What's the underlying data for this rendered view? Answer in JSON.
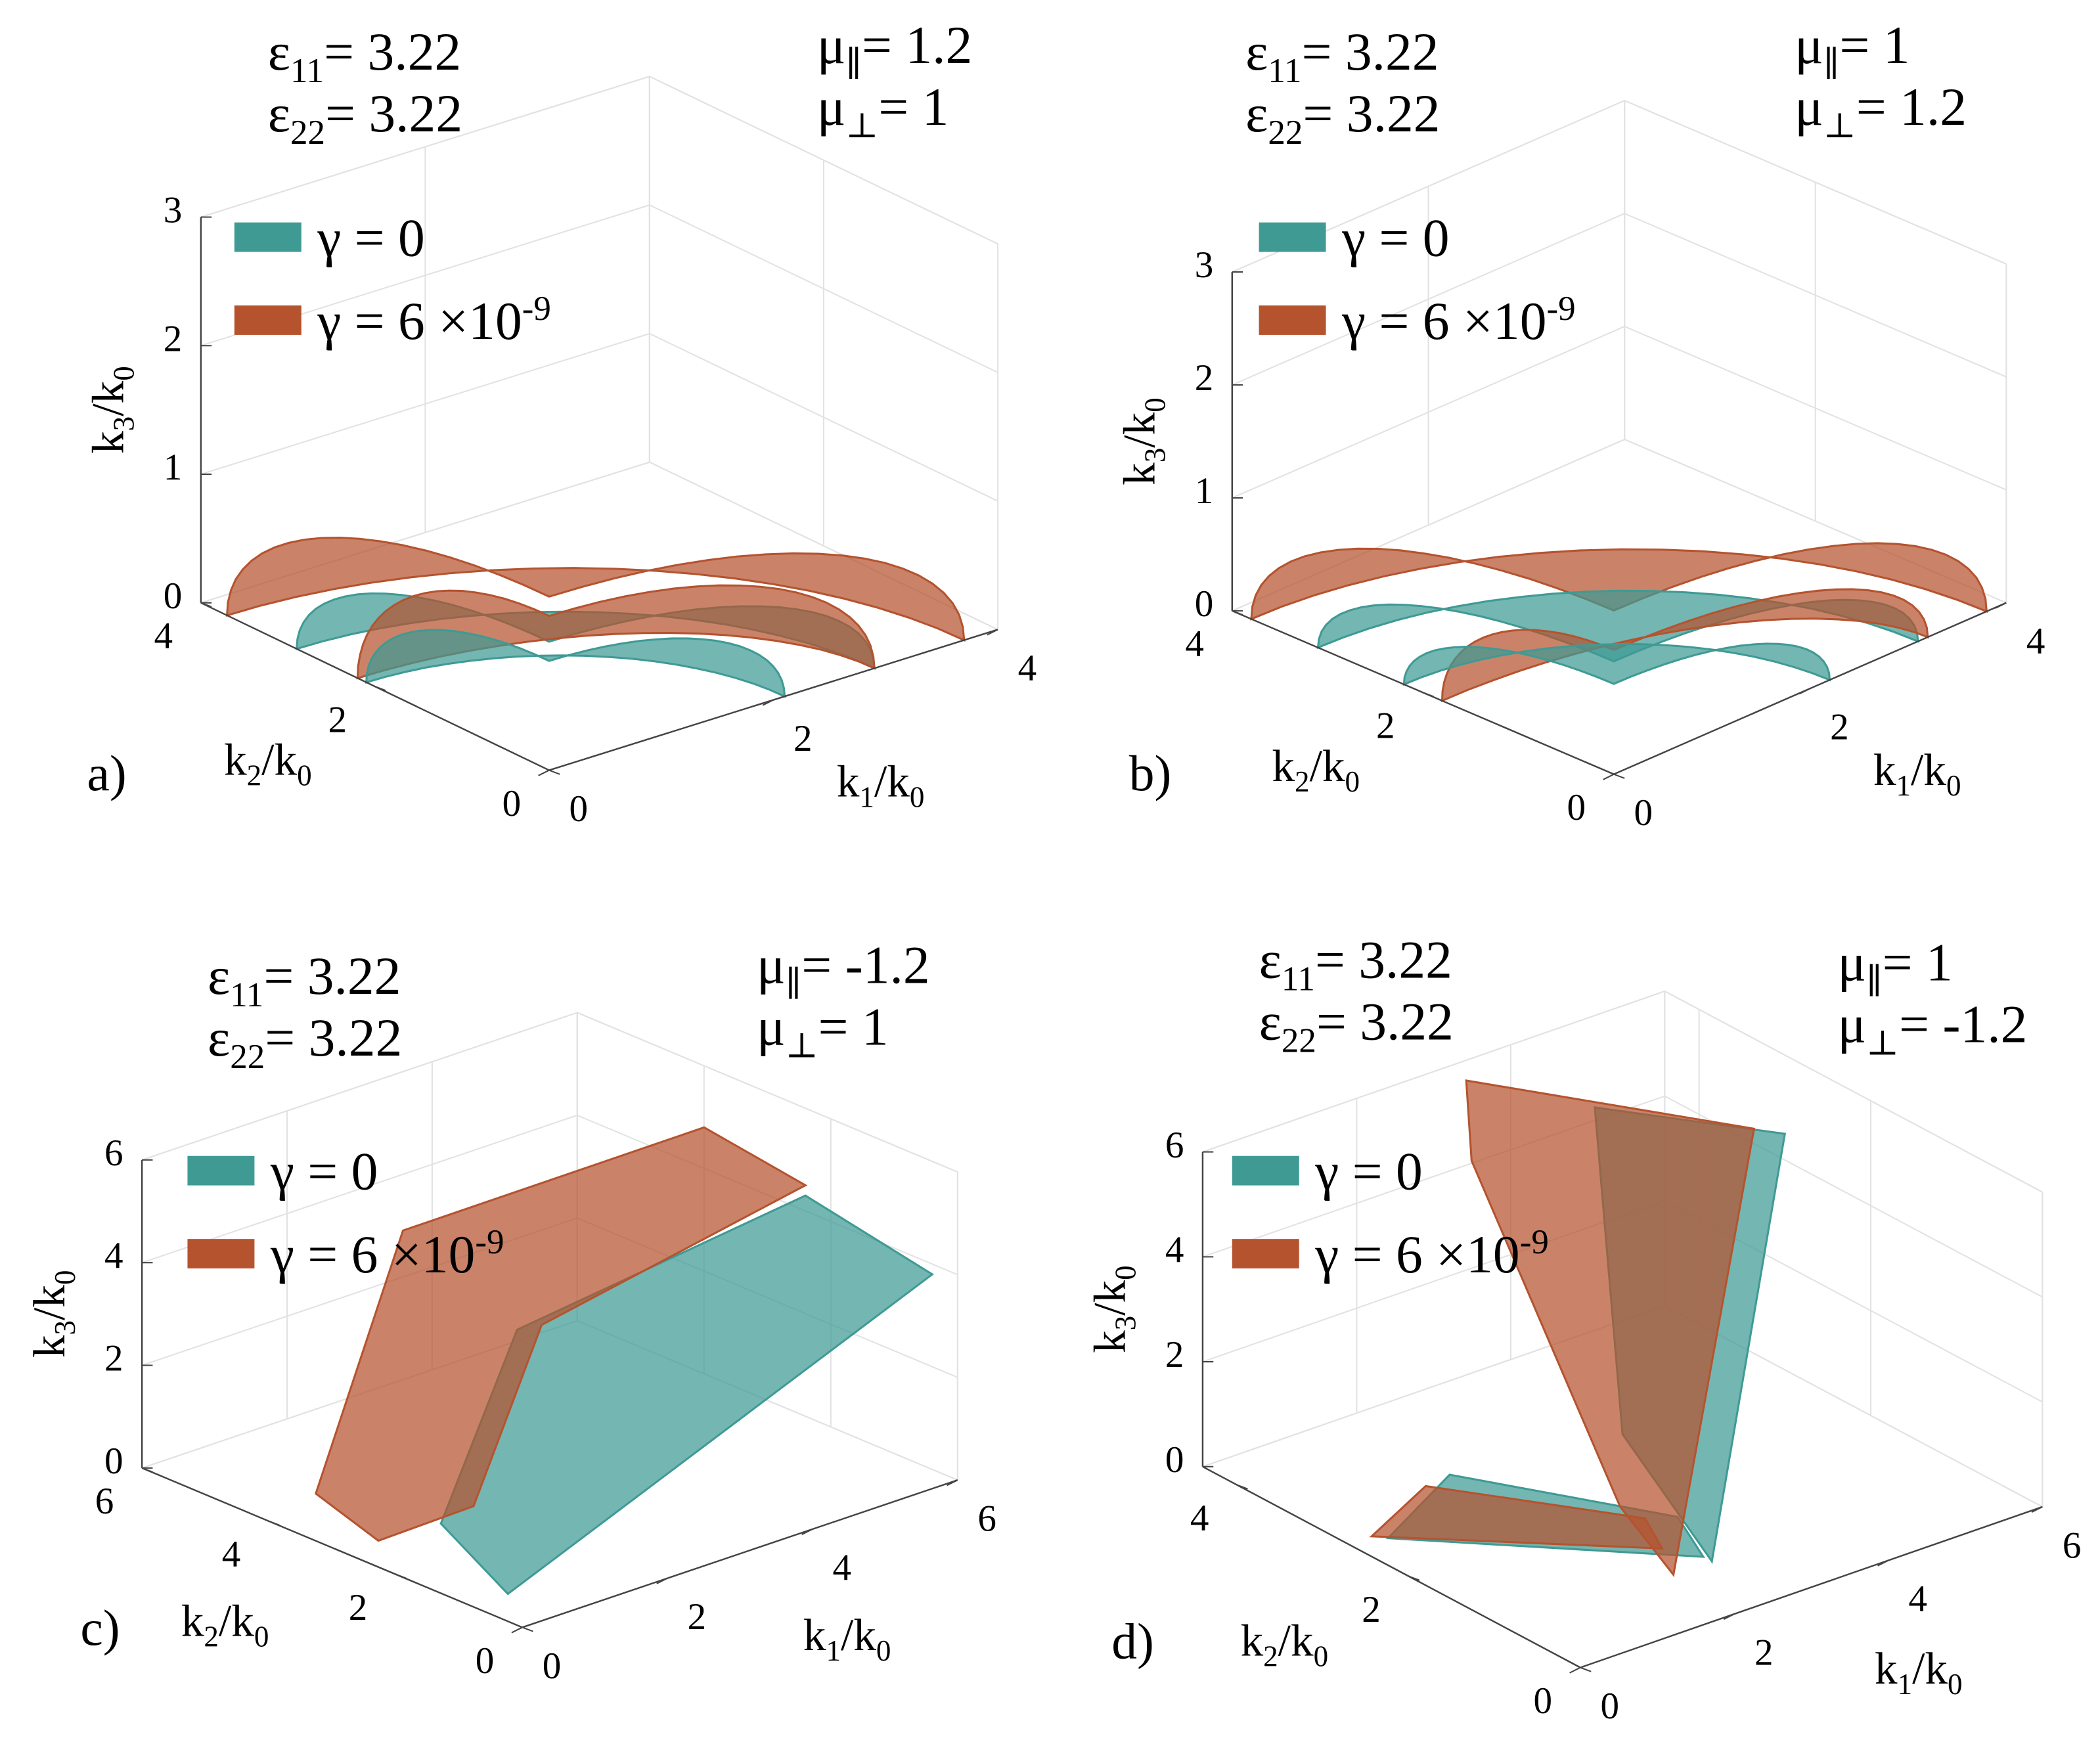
{
  "chart_data": [
    {
      "type": "surface3d",
      "panel_label": "a)",
      "params": [
        {
          "symbol": "ε",
          "sub": "11",
          "rest": "= 3.22"
        },
        {
          "symbol": "ε",
          "sub": "22",
          "rest": "= 3.22"
        },
        {
          "symbol": "μ",
          "sub": "∥",
          "rest": "= 1.2"
        },
        {
          "symbol": "μ",
          "sub": "⊥",
          "rest": "= 1"
        }
      ],
      "series": [
        {
          "name": "γ = 0",
          "color": "#3f9a94"
        },
        {
          "name": "γ = 6 ×10",
          "sup": "-9",
          "color": "#b5532f"
        }
      ],
      "xlabel": {
        "base": "k",
        "sub": "1",
        "mid": "/k",
        "sub2": "0"
      },
      "ylabel": {
        "base": "k",
        "sub": "2",
        "mid": "/k",
        "sub2": "0"
      },
      "zlabel": {
        "base": "k",
        "sub": "3",
        "mid": "/k",
        "sub2": "0"
      },
      "xlim": [
        0,
        4
      ],
      "ylim": [
        0,
        4
      ],
      "zlim": [
        0,
        3
      ],
      "xticks": [
        0,
        2,
        4
      ],
      "yticks": [
        0,
        2,
        4
      ],
      "zticks": [
        0,
        1,
        2,
        3
      ],
      "grid": true
    },
    {
      "type": "surface3d",
      "panel_label": "b)",
      "params": [
        {
          "symbol": "ε",
          "sub": "11",
          "rest": "= 3.22"
        },
        {
          "symbol": "ε",
          "sub": "22",
          "rest": "= 3.22"
        },
        {
          "symbol": "μ",
          "sub": "∥",
          "rest": "= 1"
        },
        {
          "symbol": "μ",
          "sub": "⊥",
          "rest": "= 1.2"
        }
      ],
      "series": [
        {
          "name": "γ = 0",
          "color": "#3f9a94"
        },
        {
          "name": "γ = 6 ×10",
          "sup": "-9",
          "color": "#b5532f"
        }
      ],
      "xlabel": {
        "base": "k",
        "sub": "1",
        "mid": "/k",
        "sub2": "0"
      },
      "ylabel": {
        "base": "k",
        "sub": "2",
        "mid": "/k",
        "sub2": "0"
      },
      "zlabel": {
        "base": "k",
        "sub": "3",
        "mid": "/k",
        "sub2": "0"
      },
      "xlim": [
        0,
        4
      ],
      "ylim": [
        0,
        4
      ],
      "zlim": [
        0,
        3
      ],
      "xticks": [
        0,
        2,
        4
      ],
      "yticks": [
        0,
        2,
        4
      ],
      "zticks": [
        0,
        1,
        2,
        3
      ],
      "grid": true
    },
    {
      "type": "surface3d",
      "panel_label": "c)",
      "params": [
        {
          "symbol": "ε",
          "sub": "11",
          "rest": "= 3.22"
        },
        {
          "symbol": "ε",
          "sub": "22",
          "rest": "= 3.22"
        },
        {
          "symbol": "μ",
          "sub": "∥",
          "rest": "= -1.2"
        },
        {
          "symbol": "μ",
          "sub": "⊥",
          "rest": "= 1"
        }
      ],
      "series": [
        {
          "name": "γ = 0",
          "color": "#3f9a94"
        },
        {
          "name": "γ = 6 ×10",
          "sup": "-9",
          "color": "#b5532f"
        }
      ],
      "xlabel": {
        "base": "k",
        "sub": "1",
        "mid": "/k",
        "sub2": "0"
      },
      "ylabel": {
        "base": "k",
        "sub": "2",
        "mid": "/k",
        "sub2": "0"
      },
      "zlabel": {
        "base": "k",
        "sub": "3",
        "mid": "/k",
        "sub2": "0"
      },
      "xlim": [
        0,
        6
      ],
      "ylim": [
        0,
        6
      ],
      "zlim": [
        0,
        6
      ],
      "xticks": [
        0,
        2,
        4,
        6
      ],
      "yticks": [
        0,
        2,
        4,
        6
      ],
      "zticks": [
        0,
        2,
        4,
        6
      ],
      "grid": true
    },
    {
      "type": "surface3d",
      "panel_label": "d)",
      "params": [
        {
          "symbol": "ε",
          "sub": "11",
          "rest": "= 3.22"
        },
        {
          "symbol": "ε",
          "sub": "22",
          "rest": "= 3.22"
        },
        {
          "symbol": "μ",
          "sub": "∥",
          "rest": "= 1"
        },
        {
          "symbol": "μ",
          "sub": "⊥",
          "rest": "= -1.2"
        }
      ],
      "series": [
        {
          "name": "γ = 0",
          "color": "#3f9a94"
        },
        {
          "name": "γ = 6 ×10",
          "sup": "-9",
          "color": "#b5532f"
        }
      ],
      "xlabel": {
        "base": "k",
        "sub": "1",
        "mid": "/k",
        "sub2": "0"
      },
      "ylabel": {
        "base": "k",
        "sub": "2",
        "mid": "/k",
        "sub2": "0"
      },
      "zlabel": {
        "base": "k",
        "sub": "3",
        "mid": "/k",
        "sub2": "0"
      },
      "xlim": [
        0,
        6
      ],
      "ylim": [
        0,
        4.4
      ],
      "zlim": [
        0,
        6
      ],
      "xticks": [
        0,
        2,
        4,
        6
      ],
      "yticks": [
        0,
        2,
        4
      ],
      "zticks": [
        0,
        2,
        4,
        6
      ],
      "grid": true
    }
  ]
}
